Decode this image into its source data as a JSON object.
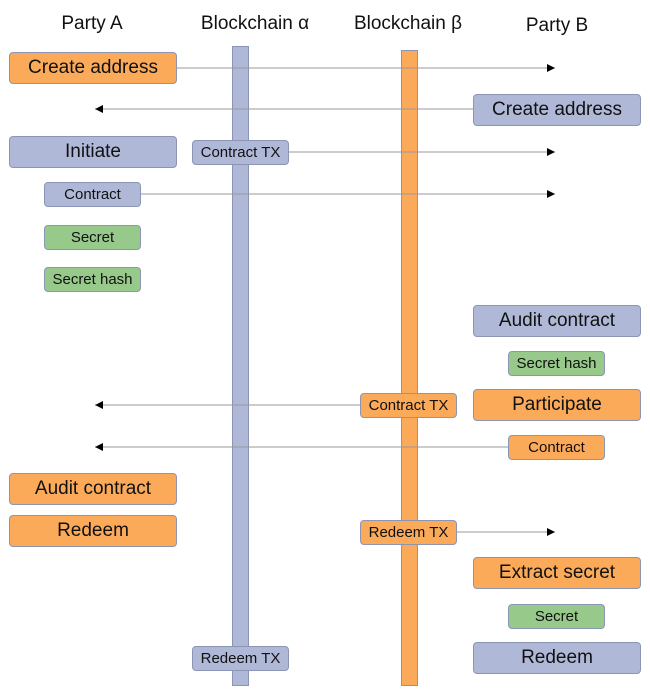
{
  "headers": {
    "party_a": "Party A",
    "chain_alpha": "Blockchain α",
    "chain_beta": "Blockchain β",
    "party_b": "Party B"
  },
  "colors": {
    "orange": "#fbaa5a",
    "blue": "#b0b8d8",
    "green": "#97c98a"
  },
  "steps": {
    "a_create_address": "Create address",
    "b_create_address": "Create address",
    "a_initiate": "Initiate",
    "alpha_contract_tx": "Contract TX",
    "a_contract": "Contract",
    "a_secret": "Secret",
    "a_secret_hash": "Secret hash",
    "b_audit_contract": "Audit contract",
    "b_secret_hash": "Secret hash",
    "beta_contract_tx": "Contract TX",
    "b_participate": "Participate",
    "b_contract": "Contract",
    "a_audit_contract": "Audit contract",
    "a_redeem": "Redeem",
    "beta_redeem_tx": "Redeem TX",
    "b_extract_secret": "Extract secret",
    "b_secret": "Secret",
    "alpha_redeem_tx": "Redeem TX",
    "b_redeem": "Redeem"
  }
}
